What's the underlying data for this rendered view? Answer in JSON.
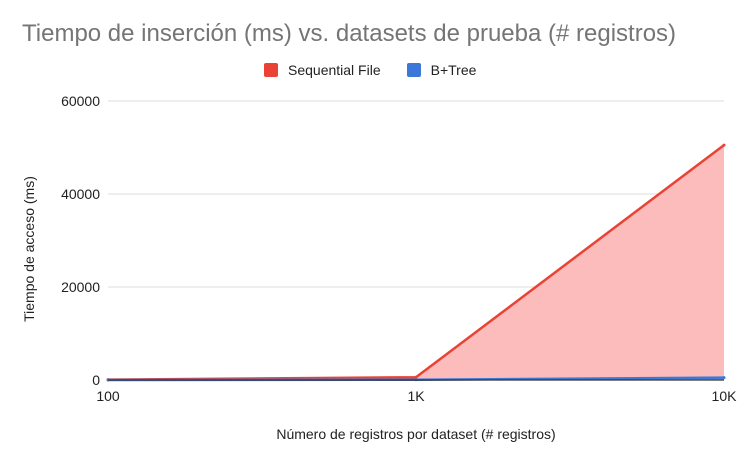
{
  "chart_data": {
    "type": "area",
    "title": "Tiempo de inserción (ms) vs. datasets de prueba (# registros)",
    "xlabel": "Número de registros por dataset (# registros)",
    "ylabel": "Tiempo de acceso (ms)",
    "categories": [
      "100",
      "1K",
      "10K"
    ],
    "series": [
      {
        "name": "Sequential File",
        "values": [
          80,
          600,
          50500
        ],
        "color": "#ea4335",
        "fill": "#fbbcbb"
      },
      {
        "name": "B+Tree",
        "values": [
          10,
          60,
          500
        ],
        "color": "#3c78d8",
        "fill": "#7ea3e6"
      }
    ],
    "ylim": [
      0,
      60000
    ],
    "yticks": [
      "0",
      "20000",
      "40000",
      "60000"
    ],
    "ytick_values": [
      0,
      20000,
      40000,
      60000
    ],
    "grid": true,
    "legend": "top"
  }
}
